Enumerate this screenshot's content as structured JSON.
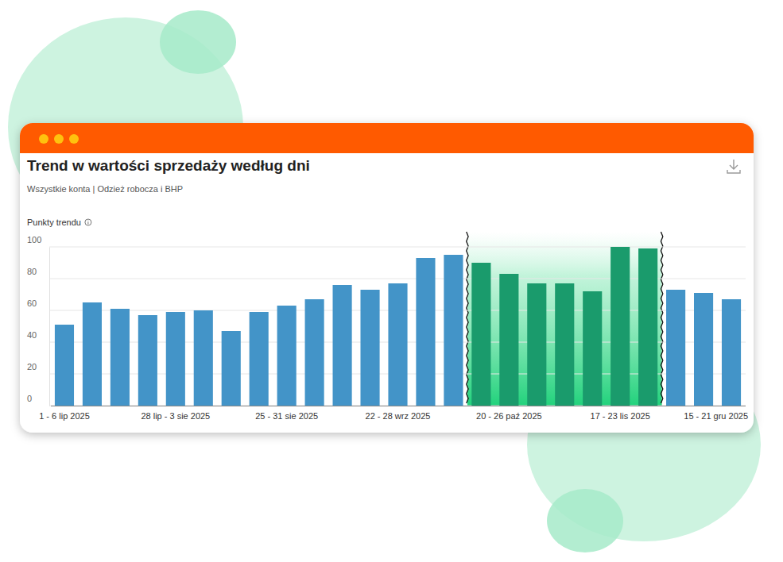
{
  "chart_data": {
    "type": "bar",
    "title": "Trend w wartości sprzedaży według dni",
    "subtitle": "Wszystkie konta | Odzież robocza i BHP",
    "y_label": "Punkty trendu",
    "categories": [
      "1 - 6 lip 2025",
      null,
      null,
      null,
      "28 lip - 3 sie 2025",
      null,
      null,
      null,
      "25 - 31 sie 2025",
      null,
      null,
      null,
      "22 - 28 wrz 2025",
      null,
      null,
      null,
      "20 - 26 paź 2025",
      null,
      null,
      null,
      "17 - 23 lis 2025",
      null,
      null,
      null,
      "15 - 21 gru 2025"
    ],
    "values": [
      51,
      65,
      61,
      57,
      59,
      60,
      47,
      59,
      63,
      67,
      76,
      73,
      77,
      93,
      95,
      90,
      83,
      77,
      77,
      72,
      100,
      99,
      73,
      71,
      67
    ],
    "colors": [
      "#4394c8",
      "#4394c8",
      "#4394c8",
      "#4394c8",
      "#4394c8",
      "#4394c8",
      "#4394c8",
      "#4394c8",
      "#4394c8",
      "#4394c8",
      "#4394c8",
      "#4394c8",
      "#4394c8",
      "#4394c8",
      "#4394c8",
      "#1a9b6c",
      "#1a9b6c",
      "#1a9b6c",
      "#1a9b6c",
      "#1a9b6c",
      "#1a9b6c",
      "#1a9b6c",
      "#4394c8",
      "#4394c8",
      "#4394c8"
    ],
    "ylim": [
      0,
      100
    ],
    "yticks": [
      0,
      20,
      40,
      60,
      80,
      100
    ],
    "grid": true
  }
}
